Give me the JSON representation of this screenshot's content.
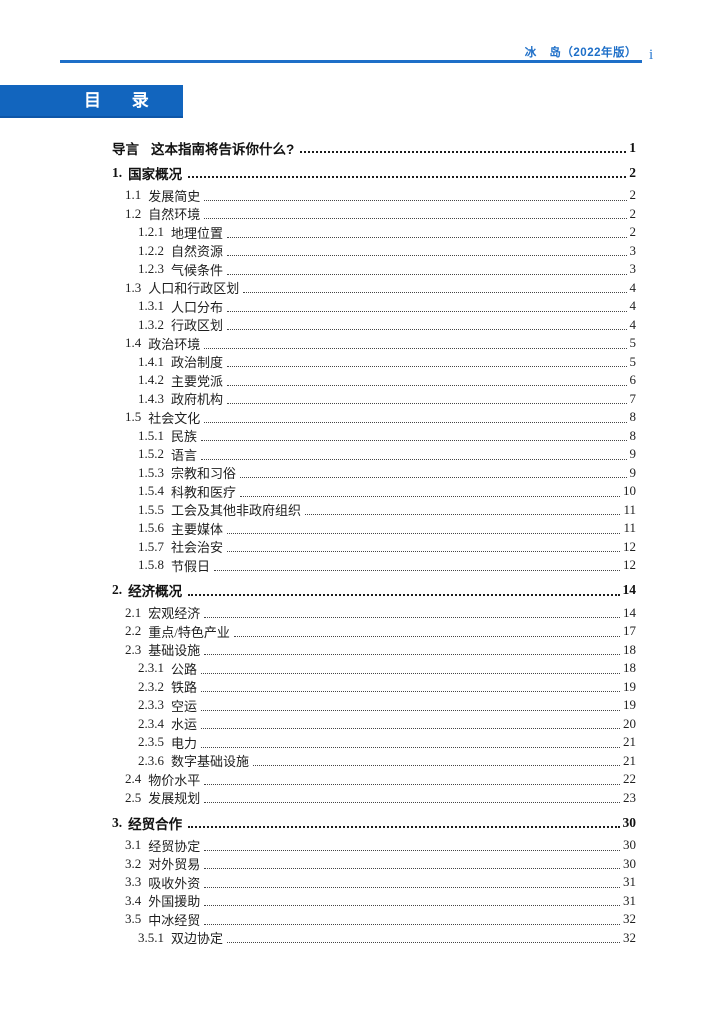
{
  "header": {
    "title": "冰 岛（2022年版）",
    "page_number": "i"
  },
  "toc_title": "目 录",
  "colors": {
    "accent_blue": "#1e6fc8",
    "banner_blue": "#1265be",
    "text_black": "#1f1f1f"
  },
  "toc": [
    {
      "num": "导言",
      "title": "这本指南将告诉你什么?",
      "page": "1",
      "level": 0,
      "bold": true
    },
    {
      "num": "1.",
      "title": "国家概况",
      "page": "2",
      "level": 0,
      "bold": true
    },
    {
      "num": "1.1",
      "title": "发展简史",
      "page": "2",
      "level": 1,
      "bold": false
    },
    {
      "num": "1.2",
      "title": "自然环境",
      "page": "2",
      "level": 1,
      "bold": false
    },
    {
      "num": "1.2.1",
      "title": "地理位置",
      "page": "2",
      "level": 2,
      "bold": false
    },
    {
      "num": "1.2.2",
      "title": "自然资源",
      "page": "3",
      "level": 2,
      "bold": false
    },
    {
      "num": "1.2.3",
      "title": "气候条件",
      "page": "3",
      "level": 2,
      "bold": false
    },
    {
      "num": "1.3",
      "title": "人口和行政区划",
      "page": "4",
      "level": 1,
      "bold": false
    },
    {
      "num": "1.3.1",
      "title": "人口分布",
      "page": "4",
      "level": 2,
      "bold": false
    },
    {
      "num": "1.3.2",
      "title": "行政区划",
      "page": "4",
      "level": 2,
      "bold": false
    },
    {
      "num": "1.4",
      "title": "政治环境",
      "page": "5",
      "level": 1,
      "bold": false
    },
    {
      "num": "1.4.1",
      "title": "政治制度",
      "page": "5",
      "level": 2,
      "bold": false
    },
    {
      "num": "1.4.2",
      "title": "主要党派",
      "page": "6",
      "level": 2,
      "bold": false
    },
    {
      "num": "1.4.3",
      "title": "政府机构",
      "page": "7",
      "level": 2,
      "bold": false
    },
    {
      "num": "1.5",
      "title": "社会文化",
      "page": "8",
      "level": 1,
      "bold": false
    },
    {
      "num": "1.5.1",
      "title": "民族",
      "page": "8",
      "level": 2,
      "bold": false
    },
    {
      "num": "1.5.2",
      "title": "语言",
      "page": "9",
      "level": 2,
      "bold": false
    },
    {
      "num": "1.5.3",
      "title": "宗教和习俗",
      "page": "9",
      "level": 2,
      "bold": false
    },
    {
      "num": "1.5.4",
      "title": "科教和医疗",
      "page": "10",
      "level": 2,
      "bold": false
    },
    {
      "num": "1.5.5",
      "title": "工会及其他非政府组织",
      "page": "11",
      "level": 2,
      "bold": false
    },
    {
      "num": "1.5.6",
      "title": "主要媒体",
      "page": "11",
      "level": 2,
      "bold": false
    },
    {
      "num": "1.5.7",
      "title": "社会治安",
      "page": "12",
      "level": 2,
      "bold": false
    },
    {
      "num": "1.5.8",
      "title": "节假日",
      "page": "12",
      "level": 2,
      "bold": false
    },
    {
      "num": "2.",
      "title": "经济概况",
      "page": "14",
      "level": 0,
      "bold": true
    },
    {
      "num": "2.1",
      "title": "宏观经济",
      "page": "14",
      "level": 1,
      "bold": false
    },
    {
      "num": "2.2",
      "title": "重点/特色产业",
      "page": "17",
      "level": 1,
      "bold": false
    },
    {
      "num": "2.3",
      "title": "基础设施",
      "page": "18",
      "level": 1,
      "bold": false
    },
    {
      "num": "2.3.1",
      "title": "公路",
      "page": "18",
      "level": 2,
      "bold": false
    },
    {
      "num": "2.3.2",
      "title": "铁路",
      "page": "19",
      "level": 2,
      "bold": false
    },
    {
      "num": "2.3.3",
      "title": "空运",
      "page": "19",
      "level": 2,
      "bold": false
    },
    {
      "num": "2.3.4",
      "title": "水运",
      "page": "20",
      "level": 2,
      "bold": false
    },
    {
      "num": "2.3.5",
      "title": "电力",
      "page": "21",
      "level": 2,
      "bold": false
    },
    {
      "num": "2.3.6",
      "title": "数字基础设施",
      "page": "21",
      "level": 2,
      "bold": false
    },
    {
      "num": "2.4",
      "title": "物价水平",
      "page": "22",
      "level": 1,
      "bold": false
    },
    {
      "num": "2.5",
      "title": "发展规划",
      "page": "23",
      "level": 1,
      "bold": false
    },
    {
      "num": "3.",
      "title": "经贸合作",
      "page": "30",
      "level": 0,
      "bold": true
    },
    {
      "num": "3.1",
      "title": "经贸协定",
      "page": "30",
      "level": 1,
      "bold": false
    },
    {
      "num": "3.2",
      "title": "对外贸易",
      "page": "30",
      "level": 1,
      "bold": false
    },
    {
      "num": "3.3",
      "title": "吸收外资",
      "page": "31",
      "level": 1,
      "bold": false
    },
    {
      "num": "3.4",
      "title": "外国援助",
      "page": "31",
      "level": 1,
      "bold": false
    },
    {
      "num": "3.5",
      "title": "中冰经贸",
      "page": "32",
      "level": 1,
      "bold": false
    },
    {
      "num": "3.5.1",
      "title": "双边协定",
      "page": "32",
      "level": 2,
      "bold": false
    }
  ]
}
